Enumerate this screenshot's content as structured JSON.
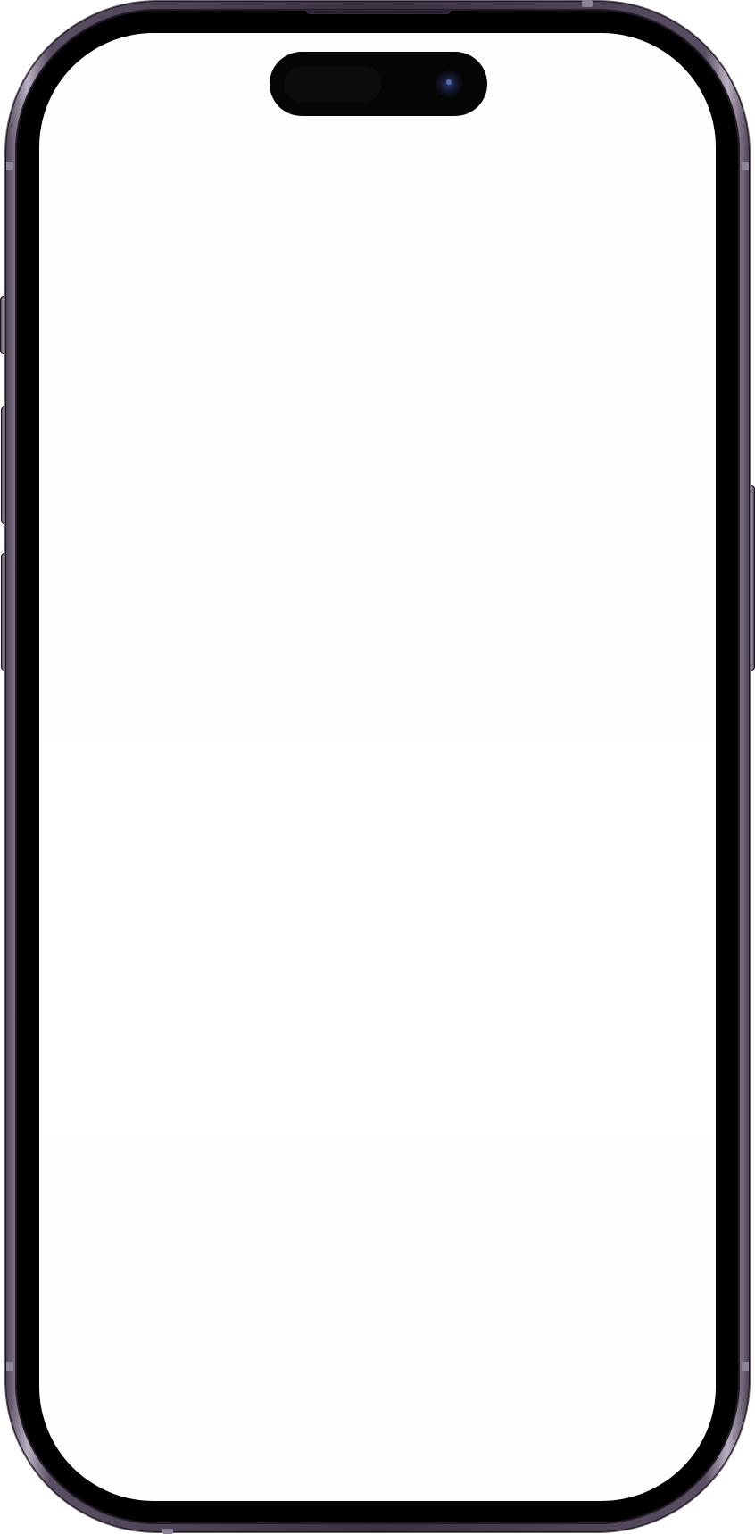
{
  "device": {
    "type": "phone mockup",
    "screen": {
      "state": "blank",
      "background_color": "#ffffff"
    },
    "frame_color": "#3a3040",
    "bezel_color": "#000000",
    "dynamic_island_color": "#050505"
  },
  "icons": {
    "camera": "front-camera-icon",
    "sensor": "face-id-sensor-icon"
  }
}
